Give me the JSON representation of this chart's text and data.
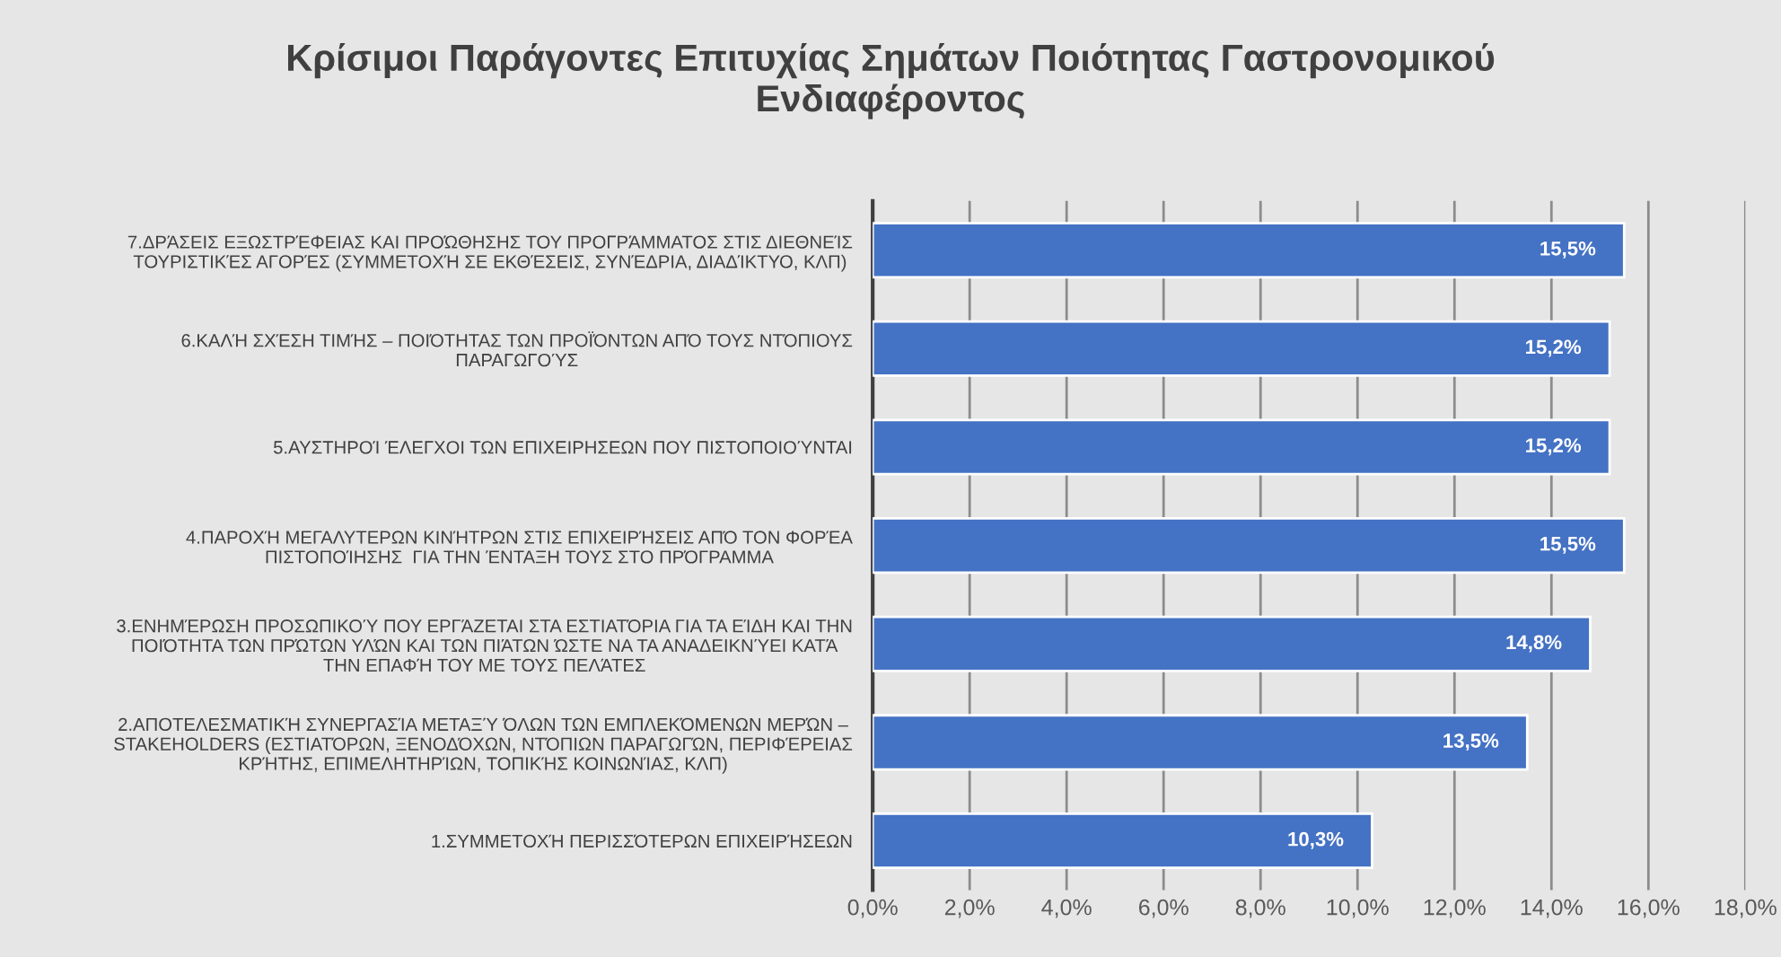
{
  "chart_data": {
    "type": "bar",
    "orientation": "horizontal",
    "title": "Κρίσιμοι Παράγοντες Επιτυχίας Σημάτων Ποιότητας Γαστρονομικού\nΕνδιαφέροντος",
    "categories": [
      "7.ΔΡΆΣΕΙΣ ΕΞΩΣΤΡΈΦΕΙΑΣ ΚΑΙ ΠΡΟΏΘΗΣΗΣ ΤΟΥ ΠΡΟΓΡΆΜΜΑΤΟΣ ΣΤΙΣ ΔΙΕΘΝΕΊΣ\nΤΟΥΡΙΣΤΙΚΈΣ ΑΓΟΡΈΣ (ΣΥΜΜΕΤΟΧΉ ΣΕ ΕΚΘΈΣΕΙΣ, ΣΥΝΈΔΡΙΑ, ΔΙΑΔΊΚΤΥΟ, ΚΛΠ)",
      "6.ΚΑΛΉ ΣΧΈΣΗ ΤΙΜΉΣ – ΠΟΙΌΤΗΤΑΣ ΤΩΝ ΠΡΟΪΌΝΤΩΝ ΑΠΌ ΤΟΥΣ ΝΤΌΠΙΟΥΣ\nΠΑΡΑΓΩΓΟΎΣ",
      "5.ΑΥΣΤΗΡΟΊ ΈΛΕΓΧΟΙ ΤΩΝ ΕΠΙΧΕΙΡΗΣΕΩΝ ΠΟΥ ΠΙΣΤΟΠΟΙΟΎΝΤΑΙ",
      "4.ΠΑΡΟΧΉ ΜΕΓΑΛΥΤΕΡΩΝ ΚΙΝΉΤΡΩΝ ΣΤΙΣ ΕΠΙΧΕΙΡΉΣΕΙΣ ΑΠΌ ΤΟΝ ΦΟΡΈΑ\nΠΙΣΤΟΠΟΊΗΣΗΣ  ΓΙΑ ΤΗΝ ΈΝΤΑΞΗ ΤΟΥΣ ΣΤΟ ΠΡΌΓΡΑΜΜΑ",
      "3.ΕΝΗΜΈΡΩΣΗ ΠΡΟΣΩΠΙΚΟΎ ΠΟΥ ΕΡΓΆΖΕΤΑΙ ΣΤΑ ΕΣΤΙΑΤΌΡΙΑ ΓΙΑ ΤΑ ΕΊΔΗ ΚΑΙ ΤΗΝ\nΠΟΙΌΤΗΤΑ ΤΩΝ ΠΡΏΤΩΝ ΥΛΏΝ ΚΑΙ ΤΩΝ ΠΙΆΤΩΝ ΏΣΤΕ ΝΑ ΤΑ ΑΝΑΔΕΙΚΝΎΕΙ ΚΑΤΆ\nΤΗΝ ΕΠΑΦΉ ΤΟΥ ΜΕ ΤΟΥΣ ΠΕΛΆΤΕΣ",
      "2.ΑΠΟΤΕΛΕΣΜΑΤΙΚΉ ΣΥΝΕΡΓΑΣΊΑ ΜΕΤΑΞΎ ΌΛΩΝ ΤΩΝ ΕΜΠΛΕΚΌΜΕΝΩΝ ΜΕΡΏΝ –\nSTAKEHOLDERS (ΕΣΤΙΑΤΌΡΩΝ, ΞΕΝΟΔΌΧΩΝ, ΝΤΌΠΙΩΝ ΠΑΡΑΓΩΓΏΝ, ΠΕΡΙΦΈΡΕΙΑΣ\nΚΡΉΤΗΣ, ΕΠΙΜΕΛΗΤΗΡΊΩΝ, ΤΟΠΙΚΉΣ ΚΟΙΝΩΝΊΑΣ, ΚΛΠ)",
      "1.ΣΥΜΜΕΤΟΧΉ ΠΕΡΙΣΣΌΤΕΡΩΝ ΕΠΙΧΕΙΡΉΣΕΩΝ"
    ],
    "values": [
      15.5,
      15.2,
      15.2,
      15.5,
      14.8,
      13.5,
      10.3
    ],
    "value_labels": [
      "15,5%",
      "15,2%",
      "15,2%",
      "15,5%",
      "14,8%",
      "13,5%",
      "10,3%"
    ],
    "color": "#4472c4",
    "xlim": [
      0,
      18
    ],
    "xticks": [
      {
        "value": 0,
        "label": "0,0%"
      },
      {
        "value": 2,
        "label": "2,0%"
      },
      {
        "value": 4,
        "label": "4,0%"
      },
      {
        "value": 6,
        "label": "6,0%"
      },
      {
        "value": 8,
        "label": "8,0%"
      },
      {
        "value": 10,
        "label": "10,0%"
      },
      {
        "value": 12,
        "label": "12,0%"
      },
      {
        "value": 14,
        "label": "14,0%"
      },
      {
        "value": 16,
        "label": "16,0%"
      },
      {
        "value": 18,
        "label": "18,0%"
      }
    ],
    "grid": "x"
  }
}
